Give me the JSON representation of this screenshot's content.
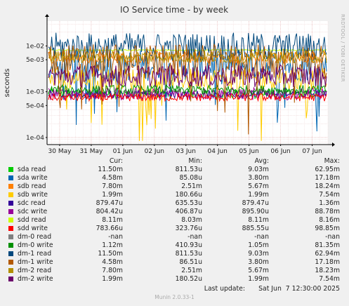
{
  "chart_data": {
    "type": "line",
    "title": "IO Service time - by week",
    "ylabel": "seconds",
    "yscale": "log",
    "ylim": [
      7e-05,
      0.035
    ],
    "grid": true,
    "y_ticks": [
      {
        "value": 0.0001,
        "label": "1e-04"
      },
      {
        "value": 0.0005,
        "label": "5e-04"
      },
      {
        "value": 0.001,
        "label": "1e-03"
      },
      {
        "value": 0.005,
        "label": "5e-03"
      },
      {
        "value": 0.01,
        "label": "1e-02"
      }
    ],
    "x_ticks": [
      "30 May",
      "31 May",
      "01 Jun",
      "02 Jun",
      "03 Jun",
      "04 Jun",
      "05 Jun",
      "06 Jun",
      "07 Jun"
    ],
    "side_label": "RRDTOOL / TOBI OETIKER",
    "columns": [
      "Cur:",
      "Min:",
      "Avg:",
      "Max:"
    ],
    "series": [
      {
        "name": "sda read",
        "color": "#00cc00",
        "cur": "11.50m",
        "min": "811.53u",
        "avg": "9.03m",
        "max": "62.95m",
        "base": 0.0009,
        "spread": 0.15,
        "drops": false
      },
      {
        "name": "sda write",
        "color": "#0066b3",
        "cur": "4.58m",
        "min": "85.08u",
        "avg": "3.80m",
        "max": "17.18m",
        "base": 0.0038,
        "spread": 0.5,
        "drops": true
      },
      {
        "name": "sdb read",
        "color": "#ff8000",
        "cur": "7.80m",
        "min": "2.51m",
        "avg": "5.67m",
        "max": "18.24m",
        "base": 0.0057,
        "spread": 0.2,
        "drops": false
      },
      {
        "name": "sdb write",
        "color": "#ffcc00",
        "cur": "1.99m",
        "min": "180.66u",
        "avg": "1.99m",
        "max": "7.54m",
        "base": 0.0019,
        "spread": 0.35,
        "drops": true
      },
      {
        "name": "sdc read",
        "color": "#330099",
        "cur": "879.47u",
        "min": "635.53u",
        "avg": "879.47u",
        "max": "1.36m",
        "base": 0.00088,
        "spread": 0.12,
        "drops": false
      },
      {
        "name": "sdc write",
        "color": "#990099",
        "cur": "804.42u",
        "min": "406.87u",
        "avg": "895.90u",
        "max": "88.78m",
        "base": 0.0009,
        "spread": 0.2,
        "drops": false
      },
      {
        "name": "sdd read",
        "color": "#ccff00",
        "cur": "8.11m",
        "min": "8.03m",
        "avg": "8.11m",
        "max": "8.16m",
        "base": 0.0081,
        "spread": 0.02,
        "drops": false
      },
      {
        "name": "sdd write",
        "color": "#ff0000",
        "cur": "783.66u",
        "min": "323.76u",
        "avg": "885.55u",
        "max": "98.85m",
        "base": 0.00075,
        "spread": 0.12,
        "drops": false
      },
      {
        "name": "dm-0 read",
        "color": "#808080",
        "cur": "-nan",
        "min": "-nan",
        "avg": "-nan",
        "max": "-nan",
        "base": null,
        "spread": 0,
        "drops": false
      },
      {
        "name": "dm-0 write",
        "color": "#008f00",
        "cur": "1.12m",
        "min": "410.93u",
        "avg": "1.05m",
        "max": "81.35m",
        "base": 0.0011,
        "spread": 0.15,
        "drops": false
      },
      {
        "name": "dm-1 read",
        "color": "#00487d",
        "cur": "11.50m",
        "min": "811.53u",
        "avg": "9.03m",
        "max": "62.94m",
        "base": 0.0095,
        "spread": 0.45,
        "drops": false
      },
      {
        "name": "dm-1 write",
        "color": "#b35a00",
        "cur": "4.58m",
        "min": "86.51u",
        "avg": "3.80m",
        "max": "17.18m",
        "base": 0.0045,
        "spread": 0.55,
        "drops": true
      },
      {
        "name": "dm-2 read",
        "color": "#b38f00",
        "cur": "7.80m",
        "min": "2.51m",
        "avg": "5.67m",
        "max": "18.23m",
        "base": 0.0058,
        "spread": 0.2,
        "drops": false
      },
      {
        "name": "dm-2 write",
        "color": "#6b006b",
        "cur": "1.99m",
        "min": "180.52u",
        "avg": "1.99m",
        "max": "7.54m",
        "base": 0.0022,
        "spread": 0.35,
        "drops": false
      }
    ]
  },
  "footer": {
    "last_update_label": "Last update:",
    "last_update_value": "Sat Jun  7 12:30:00 2025",
    "generator": "Munin 2.0.33-1"
  }
}
